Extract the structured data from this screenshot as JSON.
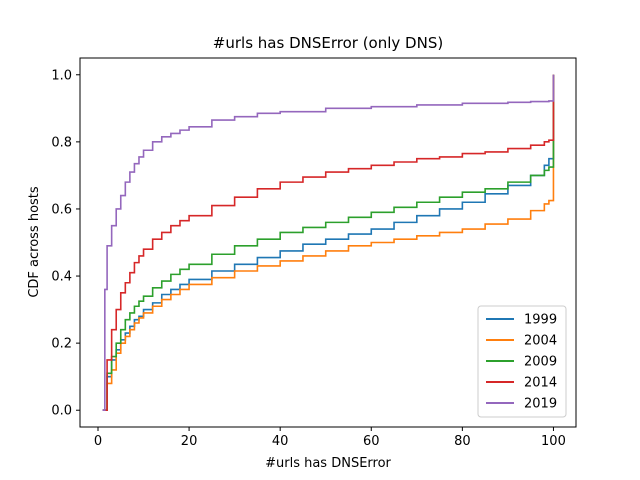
{
  "chart_data": {
    "type": "line",
    "step": true,
    "title": "#urls has DNSError (only DNS)",
    "xlabel": "#urls has DNSError",
    "ylabel": "CDF across hosts",
    "xlim": [
      -3.95,
      104.95
    ],
    "ylim": [
      -0.05,
      1.05
    ],
    "xticks": [
      0,
      20,
      40,
      60,
      80,
      100
    ],
    "yticks": [
      0.0,
      0.2,
      0.4,
      0.6,
      0.8,
      1.0
    ],
    "xtick_labels": [
      "0",
      "20",
      "40",
      "60",
      "80",
      "100"
    ],
    "ytick_labels": [
      "0.0",
      "0.2",
      "0.4",
      "0.6",
      "0.8",
      "1.0"
    ],
    "grid": false,
    "legend_position": "lower-right",
    "series": [
      {
        "name": "1999",
        "color": "#1f77b4",
        "x": [
          1,
          2,
          3,
          4,
          5,
          6,
          7,
          8,
          9,
          10,
          12,
          14,
          16,
          18,
          20,
          25,
          30,
          35,
          40,
          45,
          50,
          55,
          60,
          65,
          70,
          75,
          80,
          85,
          90,
          95,
          98,
          99,
          100,
          100
        ],
        "y": [
          0,
          0.1,
          0.15,
          0.18,
          0.21,
          0.23,
          0.25,
          0.27,
          0.28,
          0.3,
          0.32,
          0.345,
          0.36,
          0.375,
          0.39,
          0.415,
          0.435,
          0.455,
          0.475,
          0.495,
          0.51,
          0.525,
          0.54,
          0.56,
          0.58,
          0.6,
          0.62,
          0.645,
          0.67,
          0.7,
          0.73,
          0.75,
          0.77,
          1.0
        ]
      },
      {
        "name": "2004",
        "color": "#ff7f0e",
        "x": [
          1,
          2,
          3,
          4,
          5,
          6,
          7,
          8,
          9,
          10,
          12,
          14,
          16,
          18,
          20,
          25,
          30,
          35,
          40,
          45,
          50,
          55,
          60,
          65,
          70,
          75,
          80,
          85,
          90,
          95,
          98,
          99,
          100,
          100
        ],
        "y": [
          0,
          0.08,
          0.12,
          0.17,
          0.2,
          0.22,
          0.24,
          0.26,
          0.275,
          0.29,
          0.31,
          0.33,
          0.345,
          0.36,
          0.375,
          0.395,
          0.415,
          0.43,
          0.445,
          0.46,
          0.475,
          0.49,
          0.5,
          0.51,
          0.52,
          0.53,
          0.54,
          0.555,
          0.57,
          0.595,
          0.615,
          0.625,
          0.64,
          1.0
        ]
      },
      {
        "name": "2009",
        "color": "#2ca02c",
        "x": [
          1,
          2,
          3,
          4,
          5,
          6,
          7,
          8,
          9,
          10,
          12,
          14,
          16,
          18,
          20,
          25,
          30,
          35,
          40,
          45,
          50,
          55,
          60,
          65,
          70,
          75,
          80,
          85,
          90,
          95,
          98,
          99,
          100,
          100
        ],
        "y": [
          0,
          0.11,
          0.16,
          0.2,
          0.24,
          0.27,
          0.29,
          0.31,
          0.325,
          0.34,
          0.365,
          0.385,
          0.405,
          0.42,
          0.435,
          0.465,
          0.49,
          0.51,
          0.53,
          0.545,
          0.56,
          0.575,
          0.59,
          0.605,
          0.62,
          0.635,
          0.65,
          0.66,
          0.68,
          0.7,
          0.715,
          0.725,
          0.735,
          1.0
        ]
      },
      {
        "name": "2014",
        "color": "#d62728",
        "x": [
          1,
          2,
          3,
          4,
          5,
          6,
          7,
          8,
          9,
          10,
          12,
          14,
          16,
          18,
          20,
          25,
          30,
          35,
          40,
          45,
          50,
          55,
          60,
          65,
          70,
          75,
          80,
          85,
          90,
          95,
          98,
          99,
          100,
          100
        ],
        "y": [
          0,
          0.15,
          0.24,
          0.3,
          0.35,
          0.38,
          0.41,
          0.44,
          0.46,
          0.48,
          0.51,
          0.53,
          0.55,
          0.565,
          0.58,
          0.61,
          0.635,
          0.66,
          0.68,
          0.695,
          0.71,
          0.72,
          0.73,
          0.74,
          0.75,
          0.755,
          0.765,
          0.77,
          0.78,
          0.79,
          0.8,
          0.805,
          0.815,
          1.0
        ]
      },
      {
        "name": "2019",
        "color": "#9467bd",
        "x": [
          1,
          1.5,
          2,
          3,
          4,
          5,
          6,
          7,
          8,
          9,
          10,
          12,
          14,
          16,
          18,
          20,
          25,
          30,
          35,
          40,
          50,
          60,
          70,
          80,
          90,
          95,
          99,
          100,
          100
        ],
        "y": [
          0,
          0.36,
          0.49,
          0.55,
          0.6,
          0.64,
          0.68,
          0.71,
          0.735,
          0.755,
          0.775,
          0.8,
          0.815,
          0.825,
          0.835,
          0.845,
          0.865,
          0.875,
          0.885,
          0.89,
          0.9,
          0.905,
          0.91,
          0.915,
          0.918,
          0.92,
          0.922,
          0.925,
          1.0
        ]
      }
    ]
  }
}
